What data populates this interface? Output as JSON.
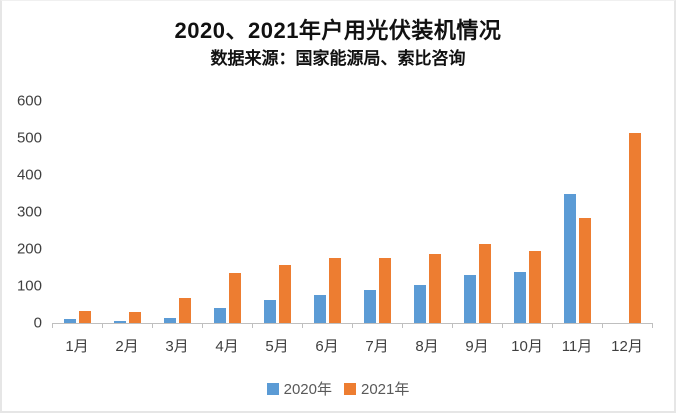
{
  "title": "2020、2021年户用光伏装机情况",
  "subtitle": "数据来源：国家能源局、索比咨询",
  "colors": {
    "series_2020": "#5B9BD5",
    "series_2021": "#ED7D31",
    "axis": "#BFBFBF",
    "tick_label": "#3F3F3F",
    "legend_text": "#595959"
  },
  "chart_data": {
    "type": "bar",
    "title": "2020、2021年户用光伏装机情况",
    "subtitle": "数据来源：国家能源局、索比咨询",
    "categories": [
      "1月",
      "2月",
      "3月",
      "4月",
      "5月",
      "6月",
      "7月",
      "8月",
      "9月",
      "10月",
      "11月",
      "12月"
    ],
    "series": [
      {
        "name": "2020年",
        "color": "#5B9BD5",
        "values": [
          12,
          5,
          13,
          40,
          62,
          76,
          90,
          103,
          130,
          137,
          350,
          0
        ]
      },
      {
        "name": "2021年",
        "color": "#ED7D31",
        "values": [
          32,
          29,
          68,
          134,
          156,
          175,
          177,
          187,
          214,
          194,
          285,
          513
        ]
      }
    ],
    "xlabel": "",
    "ylabel": "",
    "ylim": [
      0,
      600
    ],
    "yticks": [
      0,
      100,
      200,
      300,
      400,
      500,
      600
    ],
    "grid": false,
    "legend_position": "bottom"
  }
}
